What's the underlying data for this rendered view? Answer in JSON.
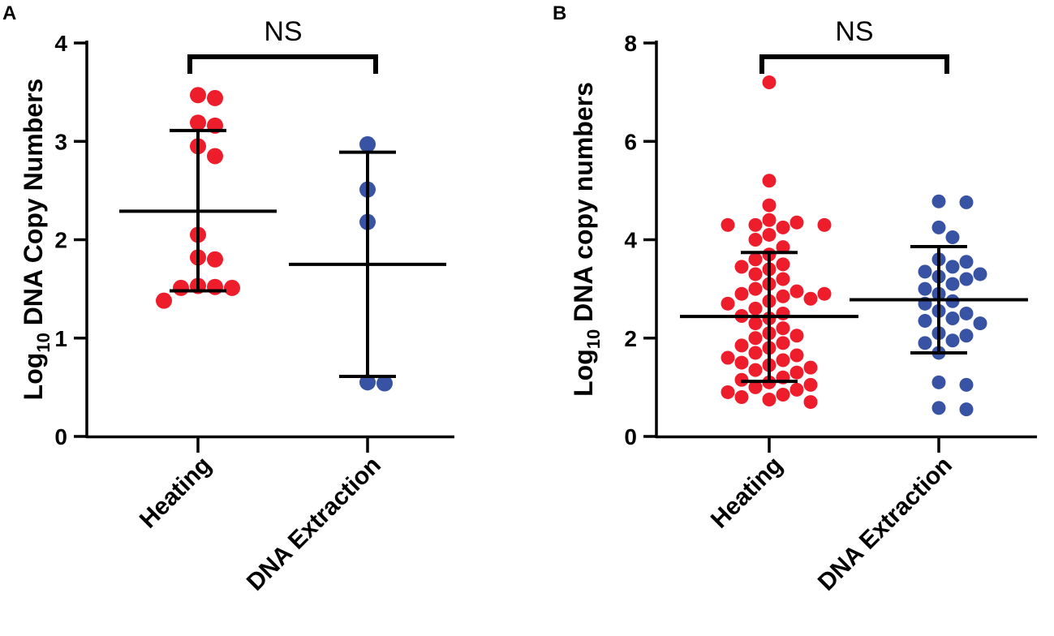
{
  "colors": {
    "heating": "#EE1D2C",
    "extraction": "#3953A4",
    "axis": "#000000"
  },
  "chart_data": [
    {
      "type": "scatter",
      "panel_label": "A",
      "ylabel_main": "Log",
      "ylabel_sub": "10",
      "ylabel_rest": " DNA Copy Numbers",
      "ylim": [
        0,
        4
      ],
      "yticks": [
        "0",
        "1",
        "2",
        "3",
        "4"
      ],
      "categories": [
        "Heating",
        "DNA Extraction"
      ],
      "significance": "NS",
      "groups": [
        {
          "name": "Heating",
          "points": [
            3.47,
            3.44,
            3.19,
            3.16,
            2.95,
            2.85,
            2.05,
            1.82,
            1.8,
            1.53,
            1.52,
            1.51,
            1.51,
            1.38
          ],
          "mean": 2.29,
          "sd_low": 1.48,
          "sd_high": 3.11
        },
        {
          "name": "DNA Extraction",
          "points": [
            2.97,
            2.51,
            2.18,
            0.55,
            0.54
          ],
          "mean": 1.75,
          "sd_low": 0.61,
          "sd_high": 2.89
        }
      ]
    },
    {
      "type": "scatter",
      "panel_label": "B",
      "ylabel_main": "Log",
      "ylabel_sub": "10",
      "ylabel_rest": " DNA copy numbers",
      "ylim": [
        0,
        8
      ],
      "yticks": [
        "0",
        "2",
        "4",
        "6",
        "8"
      ],
      "categories": [
        "Heating",
        "DNA Extraction"
      ],
      "significance": "NS",
      "groups": [
        {
          "name": "Heating",
          "points": [
            7.2,
            5.2,
            4.7,
            4.4,
            4.35,
            4.3,
            4.3,
            4.3,
            4.25,
            4.1,
            4.0,
            3.85,
            3.7,
            3.6,
            3.5,
            3.45,
            3.4,
            3.3,
            3.2,
            3.1,
            3.0,
            2.95,
            2.9,
            2.9,
            2.85,
            2.8,
            2.75,
            2.7,
            2.6,
            2.5,
            2.45,
            2.4,
            2.3,
            2.2,
            2.1,
            2.05,
            2.0,
            1.9,
            1.85,
            1.8,
            1.7,
            1.65,
            1.6,
            1.55,
            1.5,
            1.45,
            1.4,
            1.35,
            1.3,
            1.2,
            1.15,
            1.1,
            1.05,
            1.0,
            0.95,
            0.9,
            0.85,
            0.8,
            0.75,
            0.7
          ],
          "mean": 2.44,
          "sd_low": 1.12,
          "sd_high": 3.74
        },
        {
          "name": "DNA Extraction",
          "points": [
            4.78,
            4.76,
            4.25,
            4.05,
            3.6,
            3.55,
            3.45,
            3.35,
            3.3,
            3.25,
            3.2,
            3.1,
            3.0,
            2.9,
            2.75,
            2.7,
            2.55,
            2.5,
            2.4,
            2.35,
            2.3,
            2.1,
            2.05,
            1.95,
            1.9,
            1.7,
            1.1,
            1.05,
            0.58,
            0.55
          ],
          "mean": 2.78,
          "sd_low": 1.7,
          "sd_high": 3.86
        }
      ]
    }
  ]
}
